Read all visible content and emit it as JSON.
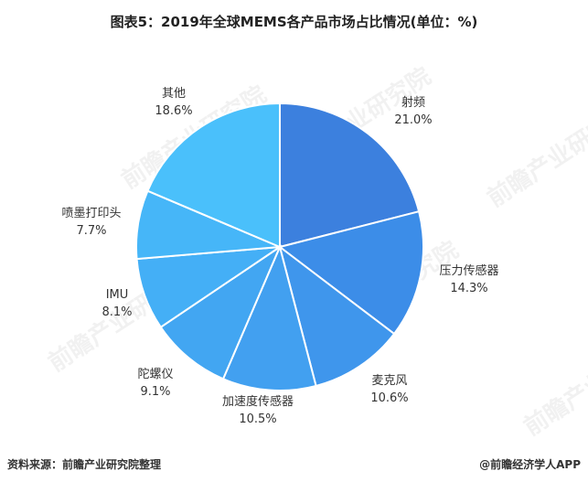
{
  "chart_data": {
    "type": "pie",
    "title": "图表5：2019年全球MEMS各产品市场占比情况(单位：%)",
    "start_angle_deg": 0,
    "direction": "clockwise",
    "slices": [
      {
        "label": "射频",
        "value": 21.0,
        "value_text": "21.0%",
        "color": "#3C80DE"
      },
      {
        "label": "压力传感器",
        "value": 14.3,
        "value_text": "14.3%",
        "color": "#3C8DE8"
      },
      {
        "label": "麦克风",
        "value": 10.6,
        "value_text": "10.6%",
        "color": "#3F96EC"
      },
      {
        "label": "加速度传感器",
        "value": 10.5,
        "value_text": "10.5%",
        "color": "#42A0F0"
      },
      {
        "label": "陀螺仪",
        "value": 9.1,
        "value_text": "9.1%",
        "color": "#42A6F2"
      },
      {
        "label": "IMU",
        "value": 8.1,
        "value_text": "8.1%",
        "color": "#44AFF6"
      },
      {
        "label": "喷墨打印头",
        "value": 7.7,
        "value_text": "7.7%",
        "color": "#46B6F8"
      },
      {
        "label": "其他",
        "value": 18.6,
        "value_text": "18.6%",
        "color": "#4AC0FB"
      }
    ]
  },
  "footer": {
    "source": "资料来源：前瞻产业研究院整理",
    "brand": "@前瞻经济学人APP"
  },
  "watermark": {
    "text": "前瞻产业研究院"
  }
}
